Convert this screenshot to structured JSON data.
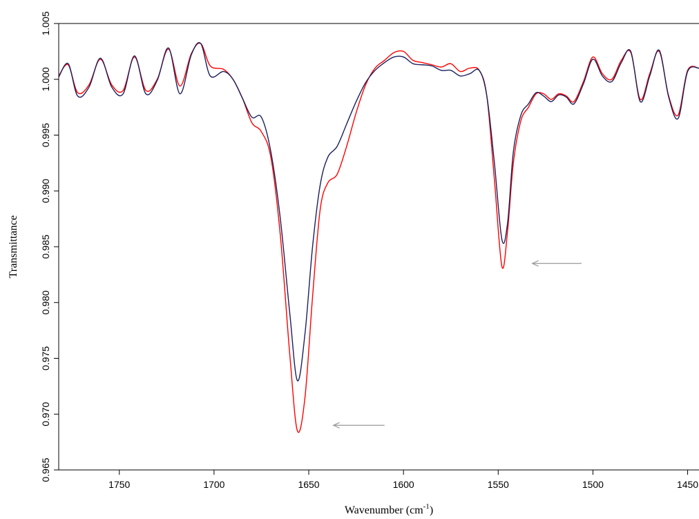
{
  "chart_data": {
    "type": "line",
    "xlabel": "Wavenumber (cm",
    "xlabel_sup": "-1",
    "xlabel_close": ")",
    "ylabel": "Transmittance",
    "xlim": [
      1782,
      1444
    ],
    "ylim": [
      0.965,
      1.005
    ],
    "x_reversed": true,
    "xticks": [
      1750,
      1700,
      1650,
      1600,
      1550,
      1500,
      1450
    ],
    "yticks": [
      "0.965",
      "0.970",
      "0.975",
      "0.980",
      "0.985",
      "0.990",
      "0.995",
      "1.000",
      "1.005"
    ],
    "grid": false,
    "series": [
      {
        "color": "#ff0000",
        "x": [
          1782,
          1777,
          1772,
          1766,
          1760,
          1754,
          1748,
          1742,
          1736,
          1730,
          1724,
          1718,
          1712,
          1707,
          1702,
          1695,
          1690,
          1685,
          1680,
          1675,
          1670,
          1665,
          1660,
          1656,
          1652,
          1648,
          1644,
          1640,
          1635,
          1630,
          1625,
          1620,
          1615,
          1610,
          1605,
          1600,
          1595,
          1590,
          1585,
          1580,
          1575,
          1570,
          1565,
          1560,
          1556,
          1552,
          1548,
          1545,
          1542,
          1538,
          1534,
          1530,
          1526,
          1522,
          1518,
          1514,
          1510,
          1505,
          1500,
          1495,
          1490,
          1485,
          1480,
          1475,
          1470,
          1465,
          1460,
          1455,
          1450,
          1444
        ],
        "y": [
          1.0003,
          1.0013,
          0.9988,
          0.9995,
          1.0018,
          0.9995,
          0.999,
          1.002,
          0.999,
          1.0,
          1.0027,
          0.9994,
          1.0023,
          1.0032,
          1.0012,
          1.0009,
          1.0,
          0.9983,
          0.9961,
          0.9953,
          0.993,
          0.986,
          0.9753,
          0.9685,
          0.9715,
          0.9805,
          0.9883,
          0.9907,
          0.9915,
          0.994,
          0.997,
          0.9995,
          1.001,
          1.0017,
          1.0024,
          1.0025,
          1.0017,
          1.0015,
          1.0013,
          1.0011,
          1.0014,
          1.0007,
          1.001,
          1.0008,
          0.9985,
          0.991,
          0.9832,
          0.9865,
          0.9925,
          0.9963,
          0.9975,
          0.9987,
          0.9987,
          0.9982,
          0.9987,
          0.9985,
          0.998,
          0.9998,
          1.002,
          1.0005,
          1.0,
          1.0017,
          1.0024,
          0.9982,
          1.0005,
          1.0025,
          0.9985,
          0.9968,
          1.0008,
          1.001
        ]
      },
      {
        "color": "#1a1f5e",
        "x": [
          1782,
          1777,
          1772,
          1766,
          1760,
          1754,
          1748,
          1742,
          1736,
          1730,
          1724,
          1718,
          1712,
          1707,
          1702,
          1695,
          1690,
          1685,
          1680,
          1675,
          1670,
          1665,
          1660,
          1656,
          1652,
          1648,
          1644,
          1640,
          1635,
          1630,
          1625,
          1620,
          1615,
          1610,
          1605,
          1600,
          1595,
          1590,
          1585,
          1580,
          1575,
          1570,
          1565,
          1560,
          1556,
          1552,
          1548,
          1545,
          1542,
          1538,
          1534,
          1530,
          1526,
          1522,
          1518,
          1514,
          1510,
          1505,
          1500,
          1495,
          1490,
          1485,
          1480,
          1475,
          1470,
          1465,
          1460,
          1455,
          1450,
          1444
        ],
        "y": [
          1.0002,
          1.0014,
          0.9985,
          0.9993,
          1.0019,
          0.9993,
          0.9987,
          1.0021,
          0.9987,
          0.9999,
          1.0028,
          0.9987,
          1.0022,
          1.0032,
          1.0003,
          1.0007,
          1.0,
          0.9983,
          0.9966,
          0.9966,
          0.9935,
          0.9875,
          0.979,
          0.973,
          0.9772,
          0.985,
          0.9905,
          0.993,
          0.994,
          0.996,
          0.998,
          0.9997,
          1.0008,
          1.0015,
          1.002,
          1.002,
          1.0014,
          1.0013,
          1.0012,
          1.0008,
          1.0008,
          1.0003,
          1.0005,
          1.0008,
          0.9985,
          0.9925,
          0.9856,
          0.9872,
          0.9935,
          0.9968,
          0.9978,
          0.9988,
          0.9985,
          0.998,
          0.9986,
          0.9984,
          0.9978,
          0.9996,
          1.0018,
          1.0003,
          0.9998,
          1.0015,
          1.0025,
          0.998,
          1.0003,
          1.0026,
          0.9984,
          0.9965,
          1.0007,
          1.001
        ]
      }
    ],
    "annotations": [
      {
        "type": "arrow",
        "x_from": 1610,
        "x_to": 1637,
        "y": 0.969
      },
      {
        "type": "arrow",
        "x_from": 1506,
        "x_to": 1532,
        "y": 0.9835
      }
    ]
  }
}
